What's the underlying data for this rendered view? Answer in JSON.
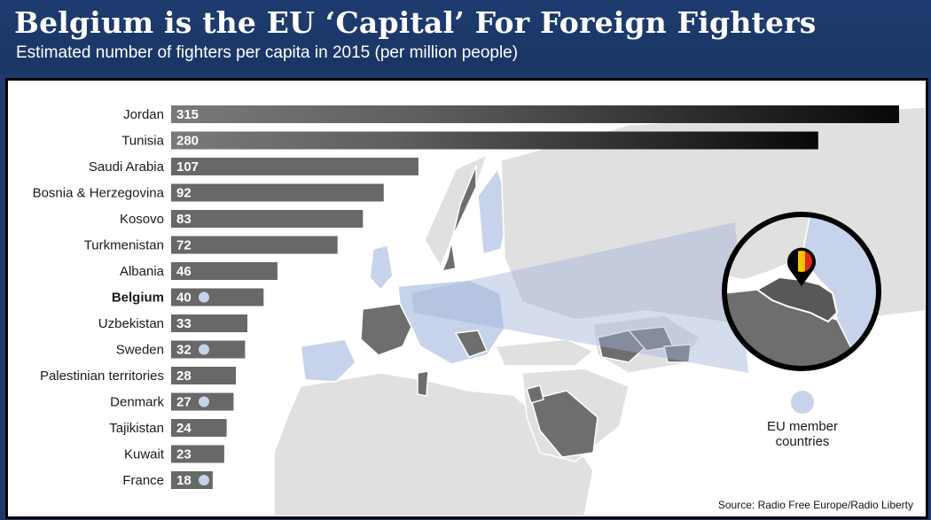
{
  "header": {
    "title": "Belgium is the EU ‘Capital’ For Foreign Fighters",
    "subtitle": "Estimated number of fighters per capita in 2015 (per million people)"
  },
  "chart_data": {
    "type": "bar",
    "orientation": "horizontal",
    "title": "Belgium is the EU ‘Capital’ For Foreign Fighters",
    "subtitle": "Estimated number of fighters per capita in 2015 (per million people)",
    "categories": [
      "Jordan",
      "Tunisia",
      "Saudi Arabia",
      "Bosnia & Herzegovina",
      "Kosovo",
      "Turkmenistan",
      "Albania",
      "Belgium",
      "Uzbekistan",
      "Sweden",
      "Palestinian territories",
      "Denmark",
      "Tajikistan",
      "Kuwait",
      "France"
    ],
    "values": [
      315,
      280,
      107,
      92,
      83,
      72,
      46,
      40,
      33,
      32,
      28,
      27,
      24,
      23,
      18
    ],
    "eu_member": [
      false,
      false,
      false,
      false,
      false,
      false,
      false,
      true,
      false,
      true,
      false,
      true,
      false,
      false,
      true
    ],
    "highlight": "Belgium",
    "xlim": [
      0,
      315
    ],
    "legend": {
      "label": "EU member countries",
      "placement": "right"
    },
    "source": "Source: Radio Free Europe/Radio Liberty"
  },
  "colors": {
    "header_bg": "#1d3a6b",
    "bar_gray": "#666666",
    "bar_dark": "#0b0b0b",
    "eu_blue": "#c7d3ea",
    "map_land": "#e0e0e0",
    "map_highlight": "#6e6e6e",
    "belgium_flag": [
      "#000000",
      "#f5c400",
      "#e1261c"
    ]
  }
}
